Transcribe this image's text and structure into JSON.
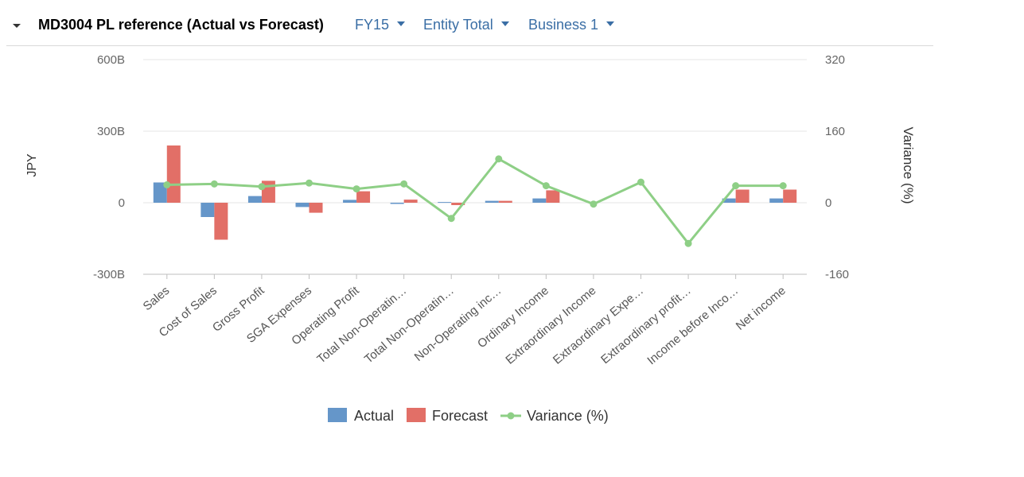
{
  "header": {
    "title": "MD3004 PL reference (Actual vs Forecast)",
    "filters": [
      {
        "label": "FY15"
      },
      {
        "label": "Entity Total"
      },
      {
        "label": "Business 1"
      }
    ]
  },
  "colors": {
    "actual": "#6596c9",
    "forecast": "#e26f67",
    "variance": "#8ecf86",
    "filter_link": "#3a6ea5"
  },
  "chart_data": {
    "type": "bar",
    "title": "",
    "ylabel": "JPY",
    "y2label": "Variance (%)",
    "ylim": [
      -300,
      600
    ],
    "y_ticks": [
      "-300B",
      "0",
      "300B",
      "600B"
    ],
    "y2lim": [
      -160,
      320
    ],
    "y2_ticks": [
      "-160",
      "0",
      "160",
      "320"
    ],
    "grid": true,
    "legend": "bottom",
    "categories": [
      "Sales",
      "Cost of Sales",
      "Gross Profit",
      "SGA Expenses",
      "Operating Profit",
      "Total Non-Operatin…",
      "Total Non-Operatin…",
      "Non-Operating inc…",
      "Ordinary Income",
      "Extraordinary Income",
      "Extraordinary Expe…",
      "Extraordinary profit…",
      "Income before Inco…",
      "Net income"
    ],
    "series": [
      {
        "name": "Actual",
        "kind": "bar",
        "values": [
          85,
          -60,
          28,
          -18,
          12,
          -5,
          3,
          8,
          18,
          0,
          0,
          0,
          18,
          18
        ]
      },
      {
        "name": "Forecast",
        "kind": "bar",
        "values": [
          240,
          -155,
          92,
          -42,
          48,
          13,
          -10,
          8,
          52,
          0,
          0,
          0,
          55,
          55
        ]
      },
      {
        "name": "Variance (%)",
        "kind": "line",
        "axis": "right",
        "values": [
          40,
          42,
          36,
          44,
          31,
          42,
          -35,
          98,
          38,
          -3,
          46,
          -91,
          38,
          38
        ]
      }
    ]
  }
}
